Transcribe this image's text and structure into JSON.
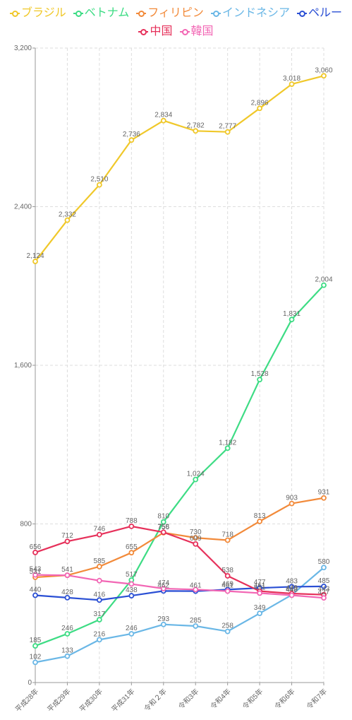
{
  "chart_data": {
    "type": "line",
    "title": "",
    "xlabel": "",
    "ylabel": "",
    "categories": [
      "平成28年",
      "平成29年",
      "平成30年",
      "平成31年",
      "令和２年",
      "令和3年",
      "令和4年",
      "令和5年",
      "令和6年",
      "令和7年"
    ],
    "y_ticks": [
      "0",
      "800",
      "1,600",
      "2,400",
      "3,200"
    ],
    "ylim": [
      0,
      3200
    ],
    "grid": true,
    "legend_position": "top",
    "series": [
      {
        "name": "ブラジル",
        "color": "#f0c82a",
        "values": [
          2124,
          2332,
          2510,
          2736,
          2834,
          2782,
          2777,
          2896,
          3018,
          3060
        ],
        "labels": [
          "2,124",
          "2,332",
          "2,510",
          "2,736",
          "2,834",
          "2,782",
          "2,777",
          "2,896",
          "3,018",
          "3,060"
        ]
      },
      {
        "name": "ベトナム",
        "color": "#3ddc84",
        "values": [
          185,
          246,
          317,
          517,
          810,
          1024,
          1182,
          1528,
          1831,
          2004
        ],
        "labels": [
          "185",
          "246",
          "317",
          "517",
          "810",
          "1,024",
          "1,182",
          "1,528",
          "1,831",
          "2,004"
        ]
      },
      {
        "name": "フィリピン",
        "color": "#f28a3a",
        "values": [
          531,
          541,
          585,
          655,
          756,
          730,
          718,
          813,
          903,
          931
        ],
        "labels": [
          "531",
          "541",
          "585",
          "655",
          "756",
          "730",
          "718",
          "813",
          "903",
          "931"
        ]
      },
      {
        "name": "インドネシア",
        "color": "#6ab7e6",
        "values": [
          102,
          133,
          216,
          246,
          293,
          285,
          258,
          349,
          442,
          580
        ],
        "labels": [
          "102",
          "133",
          "216",
          "246",
          "293",
          "285",
          "258",
          "349",
          "442",
          "580"
        ]
      },
      {
        "name": "ペルー",
        "color": "#2a4fd4",
        "values": [
          440,
          428,
          416,
          438,
          462,
          461,
          469,
          477,
          483,
          485
        ],
        "labels": [
          "440",
          "428",
          "416",
          "438",
          "462",
          "461",
          "469",
          "477",
          "483",
          "485"
        ]
      },
      {
        "name": "中国",
        "color": "#e6305a",
        "values": [
          656,
          712,
          746,
          788,
          758,
          699,
          538,
          461,
          449,
          443
        ],
        "labels": [
          "656",
          "712",
          "746",
          "788",
          "758",
          "699",
          "538",
          "461",
          "449",
          "443"
        ]
      },
      {
        "name": "韓国",
        "color": "#f266b4",
        "values": [
          543,
          541,
          514,
          497,
          474,
          469,
          461,
          451,
          440,
          427
        ],
        "labels": [
          "543",
          "",
          "",
          "",
          "474",
          "",
          "461",
          "451",
          "440",
          "427"
        ]
      }
    ]
  }
}
